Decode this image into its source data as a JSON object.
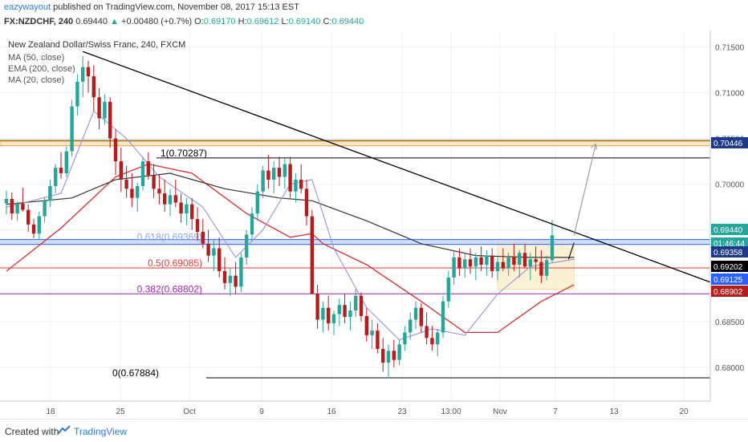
{
  "header": {
    "user": "eazywayout",
    "published": "published on TradingView.com, November 08, 2017 15:13 EST",
    "symbol": "FX:NZDCHF, 240",
    "last": "0.69440",
    "change": "+0.00480 (+0.7%)",
    "o_label": "O:",
    "o": "0.69170",
    "h_label": "H:",
    "h": "0.69612",
    "l_label": "L:",
    "l": "0.69140",
    "c_label": "C:",
    "c": "0.69440"
  },
  "legend": {
    "title": "New Zealand Dollar/Swiss Franc, 240, FXCM",
    "items": [
      "MA (50, close)",
      "EMA (200, close)",
      "MA (20, close)"
    ]
  },
  "footer": {
    "created_with": "Created with",
    "brand": "TradingView"
  },
  "colors": {
    "up": "#26a69a",
    "down": "#b71c1c",
    "ma50": "#333333",
    "ema200": "#d32f2f",
    "ma20": "#9c8fe0",
    "trendline": "#000000",
    "fib618": "#2962ff",
    "fib05": "#e53935",
    "fib382": "#9c27b0",
    "resistance": "#e8a33a",
    "box": "#f6d98b",
    "arrow": "#9e9e9e"
  },
  "chart_data": {
    "type": "candlestick",
    "x_tick_labels": [
      "18",
      "25",
      "Oct",
      "9",
      "16",
      "23",
      "13:00",
      "Nov",
      "7",
      "13",
      "20"
    ],
    "y_ticks": [
      0.715,
      0.71,
      0.705,
      0.7,
      0.695,
      0.69,
      0.685,
      0.68
    ],
    "y_tick_labels": [
      "0.71500",
      "0.71000",
      "0.70500",
      "0.70000",
      "0.69500",
      "0.69000",
      "0.68500",
      "0.68000"
    ],
    "ylim": [
      0.6763,
      0.7168
    ],
    "fib_levels": [
      {
        "label": "1(0.70287)",
        "value": 0.70287,
        "color": "#000000"
      },
      {
        "label": "0.618(0.69369)",
        "value": 0.69369,
        "color": "#2962ff"
      },
      {
        "label": "0.5(0.69085)",
        "value": 0.69085,
        "color": "#e53935"
      },
      {
        "label": "0.382(0.68802)",
        "value": 0.68802,
        "color": "#9c27b0"
      },
      {
        "label": "0(0.67884)",
        "value": 0.67884,
        "color": "#000000"
      }
    ],
    "price_tags": [
      {
        "label": "0.70446",
        "value": 0.70446,
        "bg": "#1e3a8a",
        "fg": "#ffffff"
      },
      {
        "label": "0.69440",
        "value": 0.6944,
        "bg": "#26a69a",
        "fg": "#ffffff"
      },
      {
        "label": "01:46:44",
        "value": 0.6937,
        "bg": "#26a69a",
        "fg": "#ffffff"
      },
      {
        "label": "0.69358",
        "value": 0.69358,
        "bg": "#1e3a8a",
        "fg": "#ffffff"
      },
      {
        "label": "0.69202",
        "value": 0.69202,
        "bg": "#000000",
        "fg": "#ffffff"
      },
      {
        "label": "0.69125",
        "value": 0.69125,
        "bg": "#2962ff",
        "fg": "#ffffff"
      },
      {
        "label": "0.68902",
        "value": 0.68902,
        "bg": "#b71c1c",
        "fg": "#ffffff"
      }
    ],
    "resistance_zone": [
      0.7042,
      0.7047
    ],
    "trendline": [
      [
        0,
        0.7145
      ],
      [
        125,
        0.6892
      ]
    ],
    "consolidation_box": {
      "x": [
        90,
        104
      ],
      "y": [
        0.6885,
        0.6937
      ]
    },
    "projection_arrow": [
      [
        104,
        0.6944
      ],
      [
        108,
        0.7044
      ]
    ],
    "candles": [
      [
        0.6979,
        0.6993,
        0.6967,
        0.6984
      ],
      [
        0.6984,
        0.6991,
        0.6961,
        0.6968
      ],
      [
        0.6968,
        0.6981,
        0.696,
        0.6979
      ],
      [
        0.6979,
        0.6996,
        0.697,
        0.6972
      ],
      [
        0.6972,
        0.6978,
        0.6948,
        0.6956
      ],
      [
        0.6956,
        0.6962,
        0.6941,
        0.6946
      ],
      [
        0.6946,
        0.697,
        0.694,
        0.6965
      ],
      [
        0.6965,
        0.6986,
        0.6958,
        0.6982
      ],
      [
        0.6982,
        0.7005,
        0.6975,
        0.6998
      ],
      [
        0.6998,
        0.7022,
        0.699,
        0.7018
      ],
      [
        0.7018,
        0.7035,
        0.7006,
        0.7012
      ],
      [
        0.7012,
        0.7041,
        0.7008,
        0.7036
      ],
      [
        0.7036,
        0.7092,
        0.703,
        0.7085
      ],
      [
        0.7085,
        0.712,
        0.7075,
        0.7112
      ],
      [
        0.7112,
        0.714,
        0.7095,
        0.7128
      ],
      [
        0.7128,
        0.7135,
        0.71,
        0.7118
      ],
      [
        0.7118,
        0.713,
        0.708,
        0.7095
      ],
      [
        0.7095,
        0.7105,
        0.706,
        0.7072
      ],
      [
        0.7072,
        0.7098,
        0.7065,
        0.709
      ],
      [
        0.709,
        0.7095,
        0.704,
        0.705
      ],
      [
        0.705,
        0.706,
        0.701,
        0.7025
      ],
      [
        0.7025,
        0.704,
        0.6992,
        0.7005
      ],
      [
        0.7005,
        0.702,
        0.6985,
        0.6995
      ],
      [
        0.6995,
        0.7012,
        0.6975,
        0.6985
      ],
      [
        0.6985,
        0.7002,
        0.697,
        0.6998
      ],
      [
        0.6998,
        0.703,
        0.6993,
        0.7025
      ],
      [
        0.7025,
        0.7035,
        0.7005,
        0.701
      ],
      [
        0.701,
        0.7022,
        0.6985,
        0.6995
      ],
      [
        0.6995,
        0.701,
        0.6978,
        0.699
      ],
      [
        0.699,
        0.7005,
        0.697,
        0.6978
      ],
      [
        0.6978,
        0.6995,
        0.6965,
        0.6988
      ],
      [
        0.6988,
        0.7005,
        0.6975,
        0.698
      ],
      [
        0.698,
        0.699,
        0.6958,
        0.6968
      ],
      [
        0.6968,
        0.6985,
        0.6955,
        0.6978
      ],
      [
        0.6978,
        0.6985,
        0.695,
        0.6962
      ],
      [
        0.6962,
        0.6975,
        0.6938,
        0.6948
      ],
      [
        0.6948,
        0.6962,
        0.693,
        0.6935
      ],
      [
        0.6935,
        0.695,
        0.6915,
        0.6922
      ],
      [
        0.6922,
        0.694,
        0.6905,
        0.693
      ],
      [
        0.693,
        0.6942,
        0.6898,
        0.6905
      ],
      [
        0.6905,
        0.692,
        0.6885,
        0.6892
      ],
      [
        0.6892,
        0.6908,
        0.6878,
        0.69
      ],
      [
        0.69,
        0.6915,
        0.688,
        0.6888
      ],
      [
        0.6888,
        0.6925,
        0.6882,
        0.692
      ],
      [
        0.692,
        0.695,
        0.6912,
        0.6945
      ],
      [
        0.6945,
        0.6975,
        0.6938,
        0.6968
      ],
      [
        0.6968,
        0.7,
        0.696,
        0.6992
      ],
      [
        0.6992,
        0.702,
        0.6985,
        0.7015
      ],
      [
        0.7015,
        0.7032,
        0.6995,
        0.7005
      ],
      [
        0.7005,
        0.7025,
        0.699,
        0.7018
      ],
      [
        0.7018,
        0.703,
        0.6998,
        0.7008
      ],
      [
        0.7008,
        0.7028,
        0.6995,
        0.7022
      ],
      [
        0.7022,
        0.703,
        0.6985,
        0.6992
      ],
      [
        0.6992,
        0.7012,
        0.698,
        0.7005
      ],
      [
        0.7005,
        0.7022,
        0.699,
        0.6995
      ],
      [
        0.6995,
        0.7005,
        0.6955,
        0.6965
      ],
      [
        0.6965,
        0.6972,
        0.688,
        0.688
      ],
      [
        0.688,
        0.689,
        0.6842,
        0.6852
      ],
      [
        0.6852,
        0.6872,
        0.6838,
        0.6865
      ],
      [
        0.6865,
        0.6878,
        0.684,
        0.6848
      ],
      [
        0.6848,
        0.6862,
        0.6835,
        0.6858
      ],
      [
        0.6858,
        0.6875,
        0.6845,
        0.6868
      ],
      [
        0.6868,
        0.688,
        0.6848,
        0.6855
      ],
      [
        0.6855,
        0.6872,
        0.684,
        0.6862
      ],
      [
        0.6862,
        0.6885,
        0.6855,
        0.6878
      ],
      [
        0.6878,
        0.6882,
        0.685,
        0.6856
      ],
      [
        0.6856,
        0.6865,
        0.6828,
        0.6835
      ],
      [
        0.6835,
        0.6852,
        0.682,
        0.684
      ],
      [
        0.684,
        0.6848,
        0.6815,
        0.682
      ],
      [
        0.682,
        0.6832,
        0.6795,
        0.6805
      ],
      [
        0.6805,
        0.6825,
        0.6788,
        0.6818
      ],
      [
        0.6818,
        0.683,
        0.68,
        0.6808
      ],
      [
        0.6808,
        0.683,
        0.6802,
        0.6825
      ],
      [
        0.6825,
        0.6845,
        0.6818,
        0.6838
      ],
      [
        0.6838,
        0.686,
        0.683,
        0.6852
      ],
      [
        0.6852,
        0.6872,
        0.6842,
        0.6865
      ],
      [
        0.6865,
        0.687,
        0.6838,
        0.6845
      ],
      [
        0.6845,
        0.686,
        0.6825,
        0.6832
      ],
      [
        0.6832,
        0.6845,
        0.6818,
        0.6825
      ],
      [
        0.6825,
        0.6842,
        0.6812,
        0.6838
      ],
      [
        0.6838,
        0.6878,
        0.6832,
        0.6872
      ],
      [
        0.6872,
        0.6905,
        0.6865,
        0.6898
      ],
      [
        0.6898,
        0.6928,
        0.689,
        0.692
      ],
      [
        0.692,
        0.693,
        0.69,
        0.6908
      ],
      [
        0.6908,
        0.6925,
        0.6898,
        0.6918
      ],
      [
        0.6918,
        0.693,
        0.6902,
        0.691
      ],
      [
        0.691,
        0.6925,
        0.6895,
        0.692
      ],
      [
        0.692,
        0.6932,
        0.6905,
        0.6912
      ],
      [
        0.6912,
        0.6928,
        0.69,
        0.6922
      ],
      [
        0.6922,
        0.693,
        0.6898,
        0.6905
      ],
      [
        0.6905,
        0.692,
        0.6895,
        0.6915
      ],
      [
        0.6915,
        0.693,
        0.6905,
        0.6908
      ],
      [
        0.6908,
        0.6925,
        0.69,
        0.692
      ],
      [
        0.692,
        0.6935,
        0.6905,
        0.6912
      ],
      [
        0.6912,
        0.6928,
        0.6898,
        0.6925
      ],
      [
        0.6925,
        0.6935,
        0.6908,
        0.691
      ],
      [
        0.691,
        0.6925,
        0.6895,
        0.6918
      ],
      [
        0.6918,
        0.6932,
        0.6905,
        0.6915
      ],
      [
        0.6915,
        0.6928,
        0.6892,
        0.69
      ],
      [
        0.69,
        0.6922,
        0.6895,
        0.6917
      ],
      [
        0.6917,
        0.6961,
        0.6914,
        0.6944
      ]
    ],
    "ma20": [
      [
        0,
        0.6975
      ],
      [
        10,
        0.699
      ],
      [
        16,
        0.708
      ],
      [
        22,
        0.705
      ],
      [
        28,
        0.7008
      ],
      [
        36,
        0.6975
      ],
      [
        42,
        0.692
      ],
      [
        47,
        0.695
      ],
      [
        52,
        0.7
      ],
      [
        56,
        0.7005
      ],
      [
        60,
        0.693
      ],
      [
        66,
        0.6865
      ],
      [
        72,
        0.683
      ],
      [
        78,
        0.6842
      ],
      [
        84,
        0.6835
      ],
      [
        90,
        0.688
      ],
      [
        96,
        0.691
      ],
      [
        104,
        0.6918
      ]
    ],
    "ma50": [
      [
        0,
        0.6978
      ],
      [
        12,
        0.6985
      ],
      [
        20,
        0.7005
      ],
      [
        30,
        0.7012
      ],
      [
        40,
        0.6995
      ],
      [
        50,
        0.6985
      ],
      [
        56,
        0.6982
      ],
      [
        66,
        0.696
      ],
      [
        76,
        0.6935
      ],
      [
        86,
        0.6922
      ],
      [
        96,
        0.692
      ],
      [
        104,
        0.692
      ]
    ],
    "ema200": [
      [
        0,
        0.6905
      ],
      [
        10,
        0.6952
      ],
      [
        20,
        0.7008
      ],
      [
        26,
        0.7022
      ],
      [
        34,
        0.7012
      ],
      [
        44,
        0.6968
      ],
      [
        52,
        0.6942
      ],
      [
        56,
        0.6946
      ],
      [
        58,
        0.6935
      ],
      [
        66,
        0.6912
      ],
      [
        76,
        0.6872
      ],
      [
        84,
        0.6838
      ],
      [
        90,
        0.6838
      ],
      [
        98,
        0.6872
      ],
      [
        104,
        0.689
      ]
    ]
  }
}
